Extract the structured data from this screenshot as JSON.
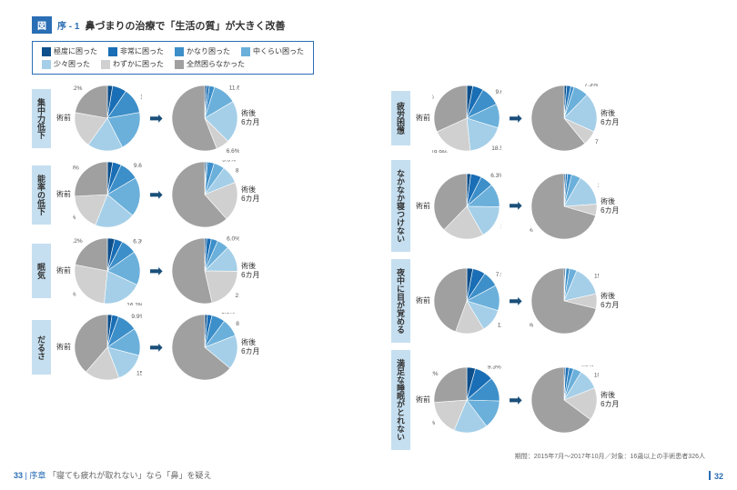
{
  "figure": {
    "label": "図",
    "num": "序 - 1",
    "title": "鼻づまりの治療で「生活の質」が大きく改善"
  },
  "legend": {
    "items": [
      {
        "label": "極度に困った",
        "color": "#0d4f8a"
      },
      {
        "label": "非常に困った",
        "color": "#1a6eb5"
      },
      {
        "label": "かなり困った",
        "color": "#3d8fc9"
      },
      {
        "label": "中くらい困った",
        "color": "#6bb0db"
      },
      {
        "label": "少々困った",
        "color": "#a5cfe8"
      },
      {
        "label": "わずかに困った",
        "color": "#d0d0d0"
      },
      {
        "label": "全然困らなかった",
        "color": "#a0a0a0"
      }
    ]
  },
  "labels": {
    "pre": "術前",
    "post": "術後\n6カ月"
  },
  "colors": [
    "#0d4f8a",
    "#1a6eb5",
    "#3d8fc9",
    "#6bb0db",
    "#a5cfe8",
    "#d0d0d0",
    "#a0a0a0"
  ],
  "rows_left": [
    {
      "name": "集中力低下",
      "pre": [
        2.6,
        7.0,
        12.6,
        20.2,
        17.5,
        17.9,
        22.2
      ],
      "post": [
        1.0,
        1.3,
        2.6,
        11.6,
        20.9,
        6.6,
        56.0
      ]
    },
    {
      "name": "能率の低下",
      "pre": [
        2.6,
        4.3,
        9.6,
        19.5,
        19.9,
        18.2,
        25.8
      ],
      "post": [
        0.7,
        0.7,
        3.3,
        5.3,
        8.9,
        19.5,
        61.6
      ]
    },
    {
      "name": "眠気",
      "pre": [
        3.0,
        3.3,
        6.3,
        13.9,
        16.2,
        21.9,
        18.2
      ],
      "post": [
        1.0,
        2.3,
        3.3,
        6.0,
        12.9,
        21.5,
        54.3
      ]
    },
    {
      "name": "だるさ",
      "pre": [
        2.3,
        3.3,
        9.9,
        13.6,
        15.2,
        17.2,
        38.7
      ],
      "post": [
        1.3,
        2.3,
        6.6,
        8.9,
        16.9,
        0,
        63.9
      ]
    }
  ],
  "rows_right": [
    {
      "name": "疲労困憊",
      "pre": [
        3.0,
        5.3,
        9.6,
        11.9,
        18.5,
        19.9,
        31.8
      ],
      "post": [
        1.3,
        2.0,
        1.7,
        7.3,
        19.5,
        7.3,
        60.9
      ]
    },
    {
      "name": "なかなか寝つけない",
      "pre": [
        2.0,
        5.3,
        6.3,
        11.6,
        16.6,
        20.5,
        37.7
      ],
      "post": [
        0.7,
        1.0,
        2.0,
        4.6,
        15.6,
        5.6,
        70.5
      ]
    },
    {
      "name": "夜中に目が覚める",
      "pre": [
        3.0,
        6.3,
        7.9,
        12.6,
        11.6,
        14.2,
        44.4
      ],
      "post": [
        0.7,
        0.3,
        1.7,
        3.6,
        15.2,
        7.3,
        71.2
      ]
    },
    {
      "name": "満足な睡眠がとれない",
      "pre": [
        4.3,
        9.3,
        11.9,
        14.2,
        16.6,
        17.5,
        26.2
      ],
      "post": [
        0.7,
        1.7,
        2.3,
        4.0,
        10.3,
        16.2,
        64.9
      ]
    }
  ],
  "footer_note": "期間：2015年7月～2017年10月／対象：16歳以上の手術患者326人",
  "page_left": {
    "num": "33",
    "chap": "序章",
    "title": "「寝ても疲れが取れない」なら「鼻」を疑え"
  },
  "page_right": "32"
}
